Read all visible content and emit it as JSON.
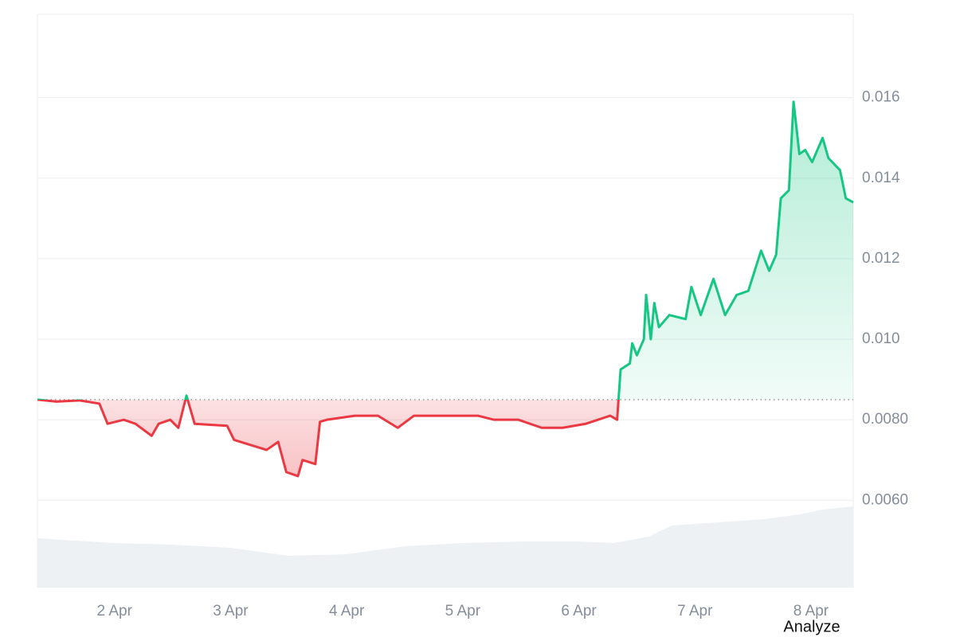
{
  "chart_data": {
    "type": "line",
    "x": [
      1.336,
      1.5,
      1.7,
      1.87,
      1.94,
      2.08,
      2.18,
      2.32,
      2.38,
      2.48,
      2.55,
      2.62,
      2.69,
      2.97,
      3.03,
      3.31,
      3.41,
      3.48,
      3.58,
      3.62,
      3.73,
      3.77,
      3.83,
      4.07,
      4.27,
      4.44,
      4.58,
      4.86,
      5.13,
      5.27,
      5.48,
      5.68,
      5.86,
      6.06,
      6.27,
      6.33,
      6.36,
      6.44,
      6.46,
      6.5,
      6.56,
      6.58,
      6.62,
      6.65,
      6.69,
      6.78,
      6.92,
      6.97,
      7.05,
      7.16,
      7.26,
      7.36,
      7.46,
      7.57,
      7.64,
      7.7,
      7.74,
      7.81,
      7.85,
      7.9,
      7.95,
      8.01,
      8.1,
      8.15,
      8.25,
      8.3,
      8.364
    ],
    "series": [
      {
        "color": "#16c784",
        "color_below": "#ea3943",
        "values": [
          0.0085,
          0.00845,
          0.00848,
          0.0084,
          0.0079,
          0.008,
          0.0079,
          0.0076,
          0.0079,
          0.008,
          0.0078,
          0.0086,
          0.0079,
          0.00785,
          0.0075,
          0.00725,
          0.00745,
          0.0067,
          0.0066,
          0.007,
          0.0069,
          0.00795,
          0.008,
          0.0081,
          0.0081,
          0.0078,
          0.0081,
          0.0081,
          0.0081,
          0.008,
          0.008,
          0.0078,
          0.0078,
          0.0079,
          0.0081,
          0.008,
          0.00925,
          0.0094,
          0.0099,
          0.0096,
          0.01,
          0.0111,
          0.01,
          0.0109,
          0.0103,
          0.0106,
          0.0105,
          0.0113,
          0.0106,
          0.0115,
          0.0106,
          0.0111,
          0.0112,
          0.0122,
          0.0117,
          0.0121,
          0.0135,
          0.0137,
          0.0159,
          0.0146,
          0.0147,
          0.0144,
          0.015,
          0.0145,
          0.0142,
          0.0135,
          0.0134
        ]
      },
      {
        "color": "#eef1f4",
        "axis": "y2",
        "x": [
          1.336,
          2.0,
          2.5,
          3.0,
          3.5,
          4.0,
          4.5,
          5.0,
          5.5,
          6.0,
          6.3,
          6.6,
          6.8,
          7.2,
          7.6,
          7.9,
          8.1,
          8.364
        ],
        "values": [
          62,
          56,
          54,
          50,
          40,
          42,
          52,
          56,
          58,
          58,
          56,
          64,
          78,
          82,
          86,
          92,
          98,
          102
        ]
      }
    ],
    "baseline": 0.0085,
    "xlim": [
      1.336,
      8.364
    ],
    "xticks": [
      {
        "value": 2,
        "label": "2 Apr"
      },
      {
        "value": 3,
        "label": "3 Apr"
      },
      {
        "value": 4,
        "label": "4 Apr"
      },
      {
        "value": 5,
        "label": "5 Apr"
      },
      {
        "value": 6,
        "label": "6 Apr"
      },
      {
        "value": 7,
        "label": "7 Apr"
      },
      {
        "value": 8,
        "label": "8 Apr"
      }
    ],
    "ylim": [
      0.00383,
      0.01807
    ],
    "yticks": [
      {
        "value": 0.006,
        "label": "0.0060"
      },
      {
        "value": 0.008,
        "label": "0.0080"
      },
      {
        "value": 0.01,
        "label": "0.010"
      },
      0.012,
      0.014,
      0.016
    ],
    "y2lim": [
      0,
      720
    ],
    "grid": true,
    "button": "Analyze"
  }
}
